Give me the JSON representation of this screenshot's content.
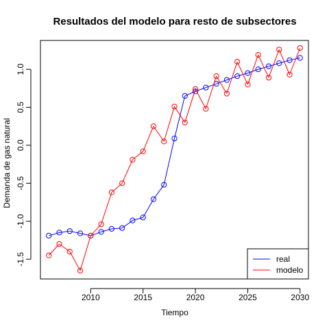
{
  "chart_data": {
    "type": "line",
    "title": "Resultados del modelo para resto de subsectores",
    "xlabel": "Tiempo",
    "ylabel": "Demanda de gas natural",
    "xlim": [
      2005.2,
      2030.8
    ],
    "ylim": [
      -1.76,
      1.38
    ],
    "x_ticks": [
      2010,
      2015,
      2020,
      2025,
      2030
    ],
    "y_ticks": [
      -1.5,
      -1.0,
      -0.5,
      0.0,
      0.5,
      1.0
    ],
    "x_tick_labels": [
      "2010",
      "2015",
      "2020",
      "2025",
      "2030"
    ],
    "y_tick_labels": [
      "-1.5",
      "-1.0",
      "-0.5",
      "0.0",
      "0.5",
      "1.0"
    ],
    "grid": false,
    "legend_position": "bottom-right",
    "x": [
      2006,
      2007,
      2008,
      2009,
      2010,
      2011,
      2012,
      2013,
      2014,
      2015,
      2016,
      2017,
      2018,
      2019,
      2020,
      2021,
      2022,
      2023,
      2024,
      2025,
      2026,
      2027,
      2028,
      2029,
      2030
    ],
    "series": [
      {
        "name": "real",
        "color": "#0000ff",
        "marker": "open-circle",
        "values": [
          -1.19,
          -1.15,
          -1.13,
          -1.16,
          -1.19,
          -1.14,
          -1.1,
          -1.09,
          -0.99,
          -0.95,
          -0.71,
          -0.52,
          0.09,
          0.65,
          0.71,
          0.76,
          0.81,
          0.86,
          0.91,
          0.95,
          1.0,
          1.04,
          1.08,
          1.12,
          1.15
        ]
      },
      {
        "name": "modelo",
        "color": "#ff0000",
        "marker": "open-circle",
        "values": [
          -1.45,
          -1.3,
          -1.4,
          -1.65,
          -1.19,
          -1.04,
          -0.62,
          -0.5,
          -0.19,
          -0.08,
          0.25,
          0.05,
          0.51,
          0.3,
          0.74,
          0.48,
          0.91,
          0.68,
          1.1,
          0.8,
          1.19,
          0.89,
          1.26,
          0.93,
          1.28
        ]
      }
    ]
  }
}
